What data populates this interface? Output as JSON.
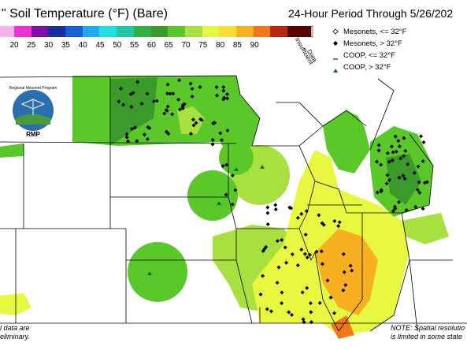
{
  "header": {
    "title": "\" Soil Temperature (°F) (Bare)",
    "period": "24-Hour Period Through 5/26/202"
  },
  "color_scale": {
    "labels": [
      20,
      25,
      30,
      35,
      40,
      45,
      50,
      55,
      60,
      65,
      70,
      75,
      80,
      85,
      90
    ],
    "insufficient": [
      "Insufficient",
      "Data"
    ]
  },
  "legend": [
    "Mesonets, <= 32°F",
    "Mesonets, > 32°F",
    "COOP, <= 32°F",
    "COOP, > 32°F"
  ],
  "logo": {
    "arc_text": "Regional Mesonet Program",
    "abbr": "RMP"
  },
  "notes": {
    "left": [
      "l data are",
      "eliminary."
    ],
    "right": [
      "NOTE: Spatial resolutio",
      "is limited in some state"
    ]
  }
}
